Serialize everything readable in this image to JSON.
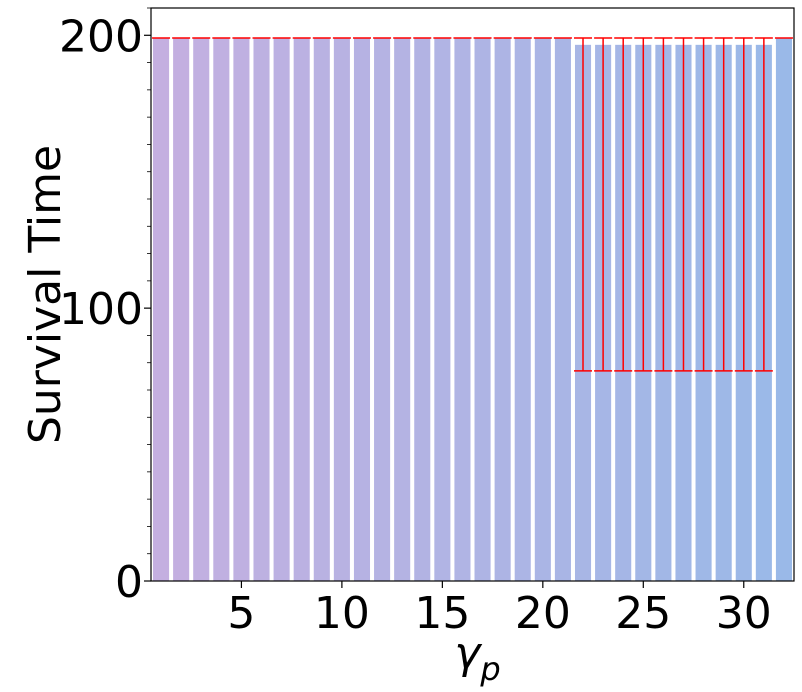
{
  "chart_data": {
    "type": "bar",
    "title": "",
    "xlabel": "γ",
    "xlabel_subscript": "p",
    "ylabel": "Survival Time",
    "x": [
      1,
      2,
      3,
      4,
      5,
      6,
      7,
      8,
      9,
      10,
      11,
      12,
      13,
      14,
      15,
      16,
      17,
      18,
      19,
      20,
      21,
      22,
      23,
      24,
      25,
      26,
      27,
      28,
      29,
      30,
      31,
      32
    ],
    "values": [
      199,
      199,
      199,
      199,
      199,
      199,
      199,
      199,
      199,
      199,
      199,
      199,
      199,
      199,
      199,
      199,
      199,
      199,
      199,
      199,
      199,
      196.5,
      196.5,
      196.5,
      196.5,
      196.5,
      196.5,
      196.5,
      196.5,
      196.5,
      196.5,
      199
    ],
    "error_low": [
      199,
      199,
      199,
      199,
      199,
      199,
      199,
      199,
      199,
      199,
      199,
      199,
      199,
      199,
      199,
      199,
      199,
      199,
      199,
      199,
      199,
      77,
      77,
      77,
      77,
      77,
      77,
      77,
      77,
      77,
      77,
      199
    ],
    "error_high": [
      199,
      199,
      199,
      199,
      199,
      199,
      199,
      199,
      199,
      199,
      199,
      199,
      199,
      199,
      199,
      199,
      199,
      199,
      199,
      199,
      199,
      199,
      199,
      199,
      199,
      199,
      199,
      199,
      199,
      199,
      199,
      199
    ],
    "xlim": [
      0.5,
      32.5
    ],
    "ylim": [
      0,
      210
    ],
    "xticks": [
      5,
      10,
      15,
      20,
      25,
      30
    ],
    "xtick_labels": [
      "5",
      "10",
      "15",
      "20",
      "25",
      "30"
    ],
    "yticks": [
      0,
      100,
      200
    ],
    "ytick_labels": [
      "0",
      "100",
      "200"
    ],
    "bar_color_start": "#c4afe0",
    "bar_color_end": "#9ab9e8",
    "error_color": "#ff0000",
    "grid": false,
    "legend": "none"
  }
}
